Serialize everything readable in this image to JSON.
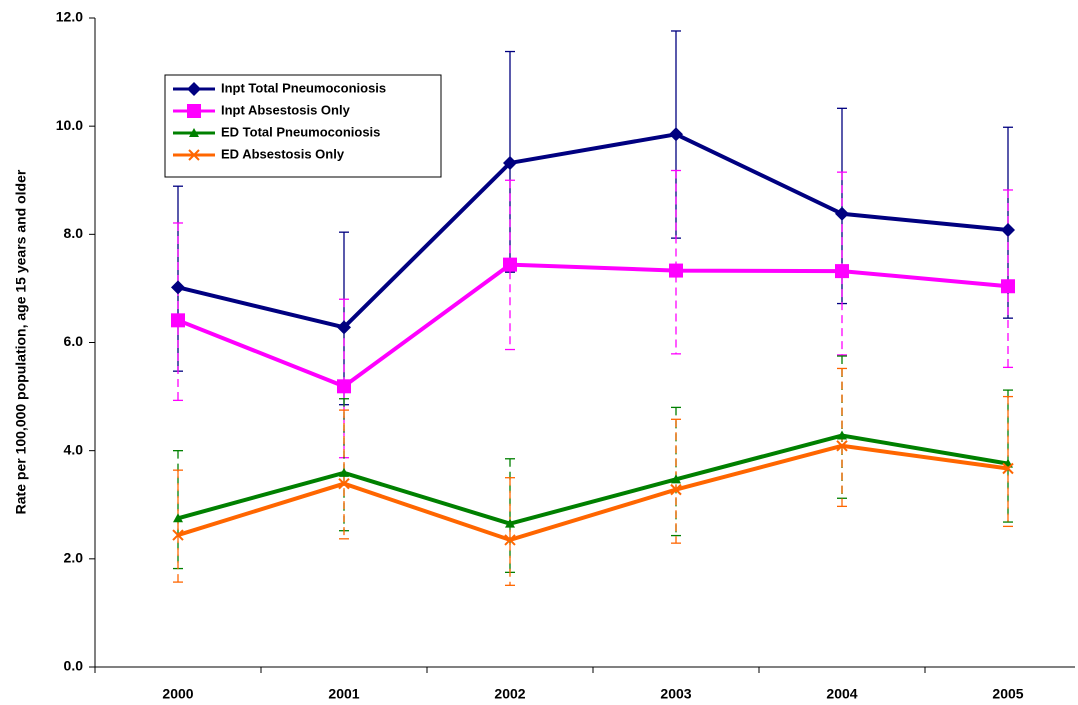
{
  "chart_data": {
    "type": "line",
    "y_label": "Rate per 100,000 population, age 15 years and older",
    "categories": [
      "2000",
      "2001",
      "2002",
      "2003",
      "2004",
      "2005"
    ],
    "series": [
      {
        "name": "Inpt Total Pneumoconiosis",
        "color": "#000080",
        "marker": "diamond",
        "error_style": "solid",
        "values": [
          7.02,
          6.28,
          9.32,
          9.85,
          8.38,
          8.08
        ],
        "upper": [
          8.89,
          8.04,
          11.38,
          11.76,
          10.33,
          9.98
        ],
        "lower": [
          5.47,
          4.85,
          7.3,
          7.93,
          6.72,
          6.45
        ]
      },
      {
        "name": "Inpt Absestosis Only",
        "color": "#ff00ff",
        "marker": "square",
        "error_style": "dashed",
        "values": [
          6.41,
          5.19,
          7.44,
          7.33,
          7.32,
          7.04
        ],
        "upper": [
          8.21,
          6.8,
          9.0,
          9.18,
          9.15,
          8.82
        ],
        "lower": [
          4.93,
          3.87,
          5.87,
          5.79,
          5.77,
          5.54
        ]
      },
      {
        "name": "ED Total Pneumoconiosis",
        "color": "#008000",
        "marker": "triangle",
        "error_style": "dashed",
        "values": [
          2.75,
          3.59,
          2.65,
          3.47,
          4.28,
          3.76
        ],
        "upper": [
          4.0,
          4.96,
          3.85,
          4.8,
          5.75,
          5.12
        ],
        "lower": [
          1.82,
          2.52,
          1.75,
          2.43,
          3.12,
          2.68
        ]
      },
      {
        "name": "ED Absestosis Only",
        "color": "#ff6600",
        "marker": "x",
        "error_style": "dashed",
        "values": [
          2.44,
          3.39,
          2.35,
          3.28,
          4.09,
          3.67
        ],
        "upper": [
          3.64,
          4.75,
          3.5,
          4.58,
          5.52,
          5.0
        ],
        "lower": [
          1.57,
          2.37,
          1.51,
          2.29,
          2.97,
          2.6
        ]
      }
    ],
    "ylim": [
      0,
      12
    ],
    "yticks": [
      {
        "value": 0,
        "label": "0.0"
      },
      {
        "value": 2,
        "label": "2.0"
      },
      {
        "value": 4,
        "label": "4.0"
      },
      {
        "value": 6,
        "label": "6.0"
      },
      {
        "value": 8,
        "label": "8.0"
      },
      {
        "value": 10,
        "label": "10.0"
      },
      {
        "value": 12,
        "label": "12.0"
      }
    ],
    "legend": "upper left"
  }
}
